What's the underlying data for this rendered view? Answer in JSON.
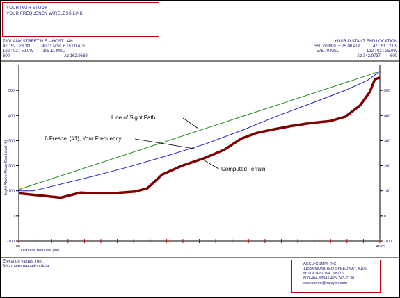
{
  "header": {
    "title_lines": [
      "YOUR PATH STUDY",
      "YOUR FREQUENCY WIRELESS LINK"
    ],
    "site_a": {
      "name": "7801 ANY STREET N.E. - HOST LAN",
      "line2": "47 : 52 : 23.3N          90.11 MSL + 15.00 AGL",
      "line3": "122 : 02 : 59.0W        105.11 MSL",
      "top_value": "600",
      "azimuth": "Az 162.9669"
    },
    "site_b": {
      "name": "YOUR DISTANT END LOCATION",
      "line2": "550.70 MSL + 25.00 AGL          47 : 51 : 21.9",
      "line3": "575.70 MSL                        122 : 02 : 25.0W",
      "top_value": "600",
      "azimuth": "Az 342.9737"
    }
  },
  "footer": {
    "elevation_lines": [
      "Elevation values from:",
      "30 - meter elevation data"
    ],
    "company_lines": [
      "ACCU-COMM, INC.",
      "11534 MUKILTEO SPEEDWAY, #105",
      "MUKILTEO, WA.   98275",
      "800-404-3334 / 425-743-2130",
      "accucomm@halcyon.com"
    ]
  },
  "chart_data": {
    "type": "line",
    "xlabel": "Distance from site (mi)",
    "ylabel": "Height Above Mean Sea Level (ft)",
    "xlim": [
      0,
      1.46
    ],
    "ylim": [
      -100,
      600
    ],
    "x_tick_labels": [
      "00",
      "1",
      "1.46 mi"
    ],
    "x_tick_values": [
      0,
      1,
      1.46
    ],
    "y_ticks": [
      -100,
      0,
      100,
      200,
      300,
      400,
      500
    ],
    "y_tick_labels_left": [
      "-100",
      "0",
      "100",
      "200",
      "300",
      "400",
      "500"
    ],
    "y_tick_labels_right": [
      "-100",
      "0",
      "100",
      "200",
      "300",
      "400",
      "500"
    ],
    "grid": false,
    "series": [
      {
        "name": "Line of Sight Path",
        "color": "#1f8a1f",
        "x": [
          0,
          1.46
        ],
        "y": [
          105.11,
          575.7
        ]
      },
      {
        "name": ".6 Fresnel (#1), Your Frequency",
        "color": "#1a1acc",
        "x": [
          0,
          0.06,
          0.15,
          0.3,
          0.45,
          0.6,
          0.75,
          0.9,
          1.05,
          1.2,
          1.32,
          1.41,
          1.46
        ],
        "y": [
          100,
          100,
          122,
          158,
          197,
          240,
          285,
          340,
          400,
          455,
          500,
          540,
          575
        ]
      },
      {
        "name": "Computed Terrain",
        "color": "#800000",
        "x": [
          0,
          0.05,
          0.1,
          0.17,
          0.25,
          0.31,
          0.4,
          0.47,
          0.52,
          0.58,
          0.66,
          0.75,
          0.83,
          0.9,
          0.96,
          1.02,
          1.1,
          1.18,
          1.26,
          1.32,
          1.38,
          1.42,
          1.44,
          1.46
        ],
        "y": [
          90,
          85,
          80,
          73,
          93,
          90,
          92,
          97,
          110,
          165,
          200,
          230,
          263,
          308,
          330,
          343,
          358,
          370,
          378,
          395,
          440,
          495,
          545,
          550
        ]
      }
    ],
    "annotations": [
      {
        "text": "Line of Sight Path",
        "series": 0
      },
      {
        "text": ".6 Fresnel (#1), Your Frequency",
        "series": 1
      },
      {
        "text": "Computed Terrain",
        "series": 2
      }
    ]
  }
}
